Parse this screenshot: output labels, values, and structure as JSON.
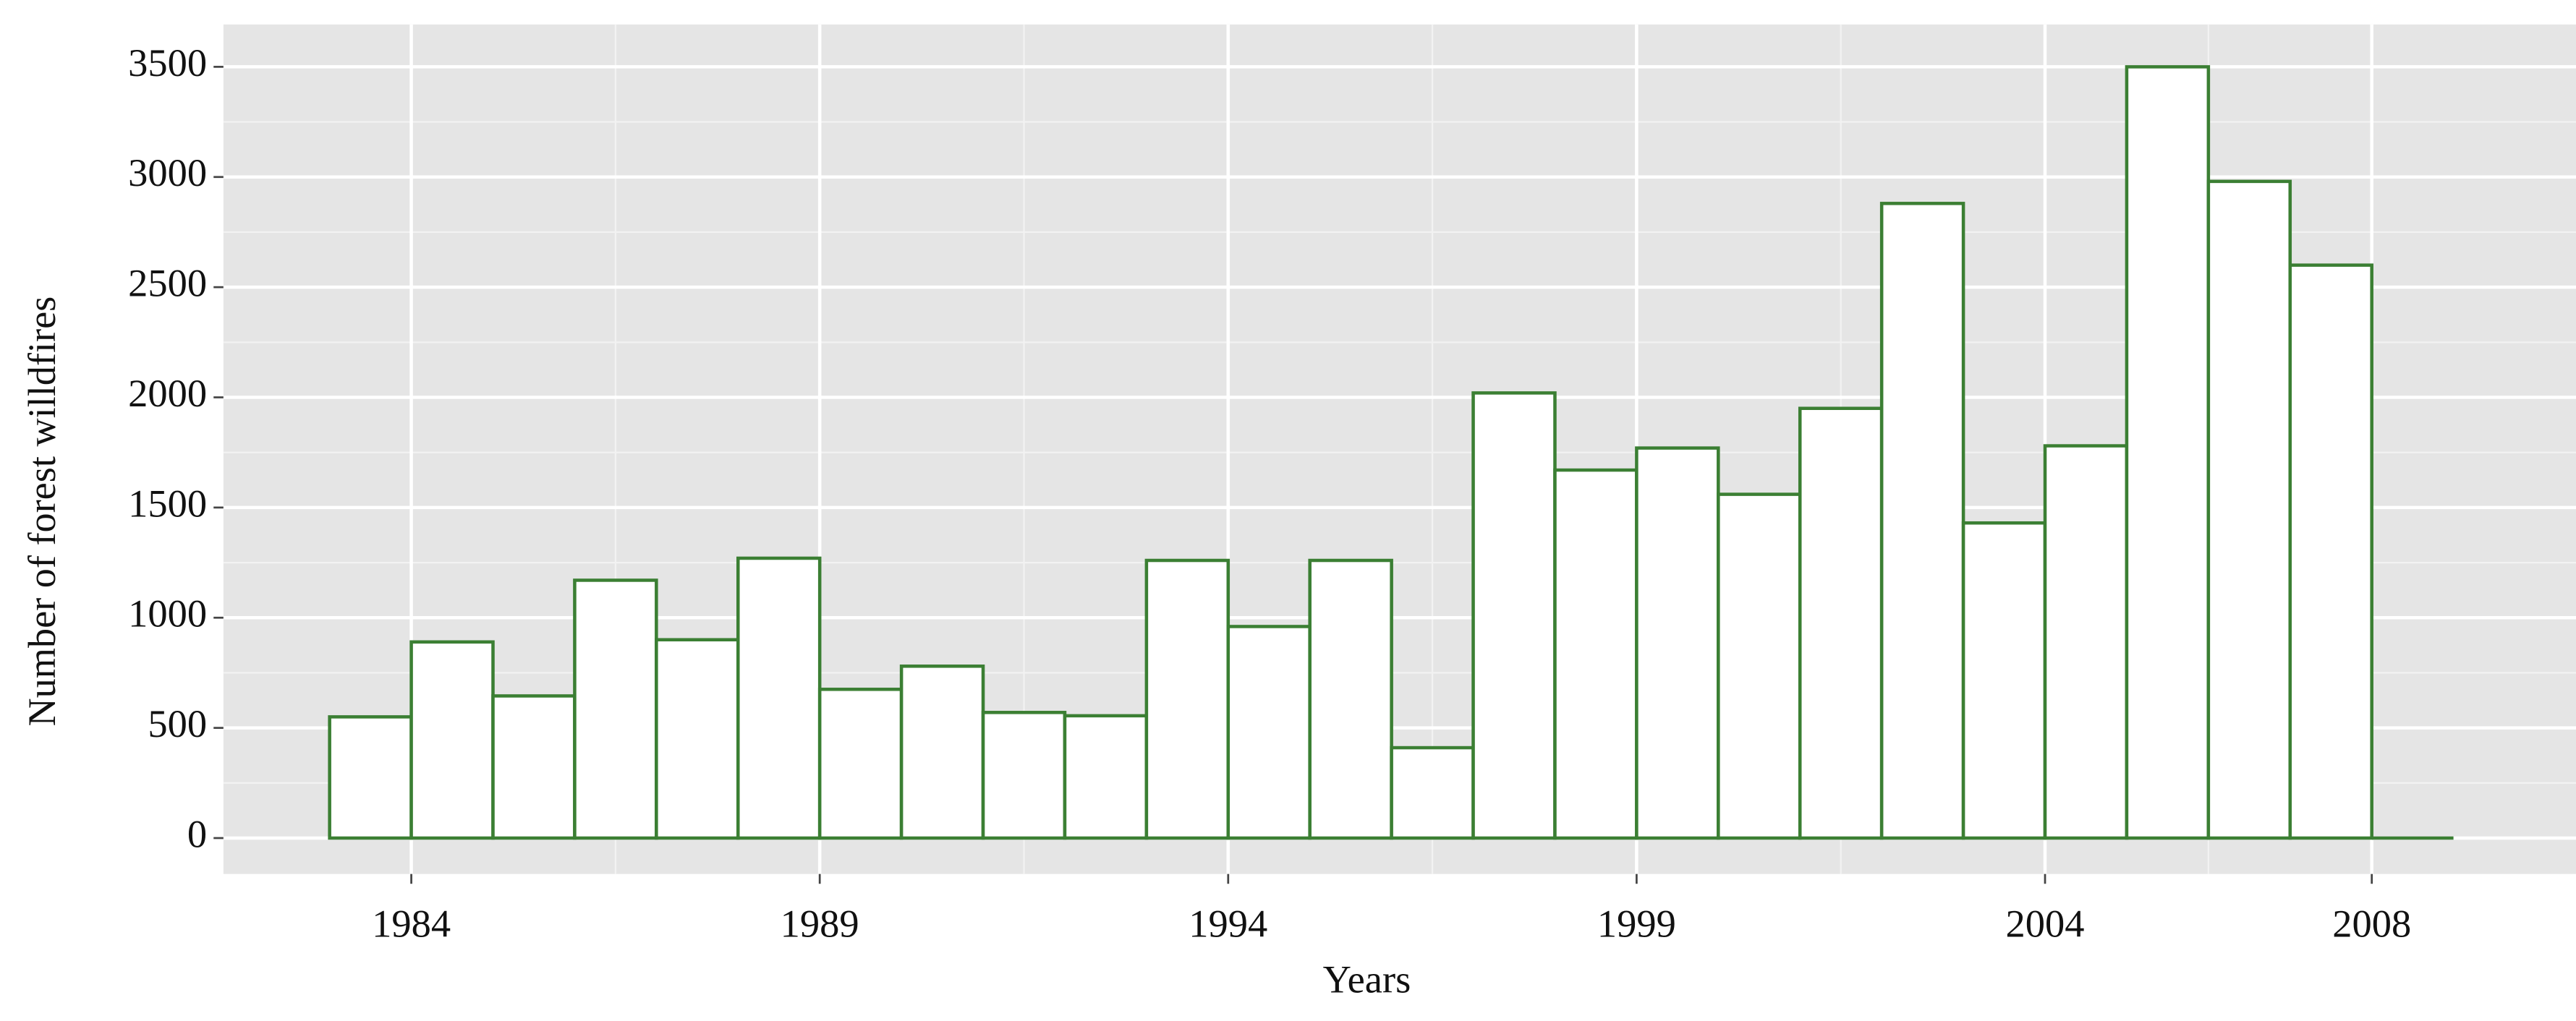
{
  "chart_data": {
    "type": "histogram",
    "x_label": "Years",
    "y_label": "Number of forest willdfires",
    "bins": [
      1983,
      1984,
      1985,
      1986,
      1987,
      1988,
      1989,
      1990,
      1991,
      1992,
      1993,
      1994,
      1995,
      1996,
      1997,
      1998,
      1999,
      2000,
      2001,
      2002,
      2003,
      2004,
      2005,
      2006,
      2007,
      2008,
      2009
    ],
    "values": [
      550,
      890,
      645,
      1170,
      900,
      1270,
      675,
      780,
      570,
      555,
      1260,
      960,
      1260,
      410,
      2020,
      1670,
      1770,
      1560,
      1950,
      2880,
      1430,
      1780,
      3500,
      2980,
      2600,
      0
    ],
    "color": "#3b7f33",
    "fill": "#ffffff",
    "xlim": [
      1981.7,
      2010.5
    ],
    "xticks": [
      1984,
      1989,
      1994,
      1999,
      2004,
      2008
    ],
    "ylim": [
      -163,
      3692
    ],
    "yticks": [
      0,
      500,
      1000,
      1500,
      2000,
      2500,
      3000,
      3500
    ],
    "grid": true
  }
}
